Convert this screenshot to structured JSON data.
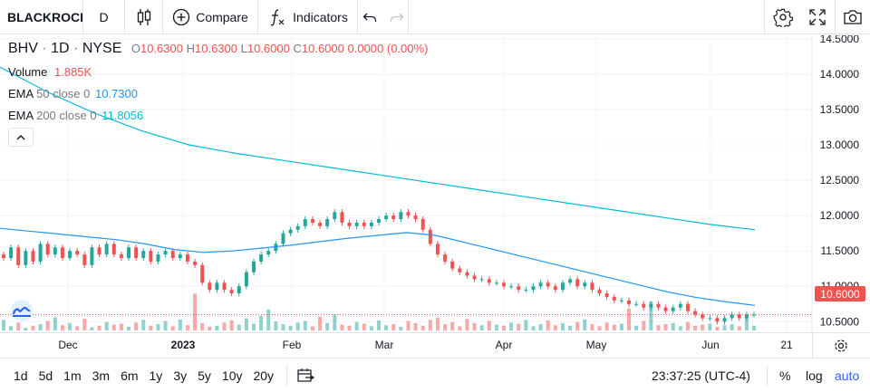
{
  "toolbar": {
    "symbol": "BLACKROCK",
    "interval": "D",
    "compare_label": "Compare",
    "indicators_label": "Indicators"
  },
  "legend": {
    "ticker": "BHV",
    "interval": "1D",
    "exchange": "NYSE",
    "o_label": "O",
    "o_value": "10.6300",
    "h_label": "H",
    "h_value": "10.6300",
    "l_label": "L",
    "l_value": "10.6000",
    "c_label": "C",
    "c_value": "10.6000",
    "change": "0.0000 (0.00%)",
    "volume_label": "Volume",
    "volume_value": "1.885K",
    "ema50_label": "EMA",
    "ema50_params": "50 close 0",
    "ema50_value": "10.7300",
    "ema200_label": "EMA",
    "ema200_params": "200 close 0",
    "ema200_value": "11.8056"
  },
  "price_axis": {
    "ticks": [
      "14.5000",
      "14.0000",
      "13.5000",
      "13.0000",
      "12.5000",
      "12.0000",
      "11.5000",
      "11.0000",
      "10.5000"
    ],
    "last_price": "10.6000"
  },
  "time_axis": {
    "labels": [
      {
        "text": "Dec",
        "bold": false
      },
      {
        "text": "2023",
        "bold": true
      },
      {
        "text": "Feb",
        "bold": false
      },
      {
        "text": "Mar",
        "bold": false
      },
      {
        "text": "Apr",
        "bold": false
      },
      {
        "text": "May",
        "bold": false
      },
      {
        "text": "Jun",
        "bold": false
      },
      {
        "text": "21",
        "bold": false
      }
    ]
  },
  "bottom_bar": {
    "ranges": [
      "1d",
      "5d",
      "1m",
      "3m",
      "6m",
      "1y",
      "3y",
      "5y",
      "10y",
      "20y"
    ],
    "clock": "23:37:25 (UTC-4)",
    "percent_label": "%",
    "log_label": "log",
    "auto_label": "auto"
  },
  "colors": {
    "up": "#26a69a",
    "down": "#ef5350",
    "ema50": "#2196f3",
    "ema200": "#00bcd4",
    "accent": "#2962ff"
  },
  "chart_data": {
    "type": "candlestick",
    "ylim": [
      10.35,
      14.55
    ],
    "series": [
      {
        "name": "BHV",
        "kind": "ohlc",
        "close": [
          11.4,
          11.55,
          11.3,
          11.5,
          11.35,
          11.6,
          11.45,
          11.55,
          11.4,
          11.5,
          11.45,
          11.3,
          11.55,
          11.45,
          11.6,
          11.45,
          11.4,
          11.55,
          11.4,
          11.5,
          11.35,
          11.45,
          11.5,
          11.4,
          11.45,
          11.35,
          11.3,
          11.05,
          10.95,
          11.05,
          10.95,
          10.9,
          11.0,
          11.2,
          11.35,
          11.45,
          11.5,
          11.6,
          11.75,
          11.8,
          11.85,
          11.95,
          11.9,
          11.85,
          11.95,
          12.05,
          11.9,
          11.85,
          11.9,
          11.85,
          11.9,
          11.95,
          12.0,
          11.95,
          12.05,
          12.0,
          11.95,
          11.8,
          11.6,
          11.45,
          11.35,
          11.25,
          11.2,
          11.15,
          11.1,
          11.1,
          11.05,
          11.05,
          11.0,
          11.0,
          10.95,
          10.95,
          11.0,
          11.05,
          11.0,
          10.95,
          11.05,
          11.1,
          11.0,
          11.05,
          10.95,
          10.9,
          10.85,
          10.8,
          10.8,
          10.75,
          10.75,
          10.7,
          10.75,
          10.7,
          10.65,
          10.7,
          10.75,
          10.65,
          10.6,
          10.55,
          10.55,
          10.5,
          10.55,
          10.6,
          10.55,
          10.6,
          10.6
        ],
        "volume": [
          20,
          8,
          15,
          5,
          9,
          12,
          18,
          25,
          10,
          14,
          8,
          22,
          6,
          9,
          16,
          11,
          13,
          7,
          15,
          20,
          9,
          12,
          18,
          8,
          21,
          10,
          70,
          14,
          7,
          9,
          15,
          19,
          11,
          23,
          13,
          28,
          40,
          17,
          12,
          9,
          15,
          18,
          8,
          26,
          14,
          30,
          11,
          9,
          16,
          13,
          8,
          19,
          10,
          12,
          7,
          18,
          14,
          9,
          20,
          24,
          12,
          16,
          8,
          22,
          14,
          10,
          18,
          11,
          9,
          15,
          13,
          20,
          8,
          12,
          19,
          10,
          14,
          9,
          16,
          21,
          12,
          8,
          15,
          11,
          13,
          42,
          9,
          18,
          55,
          10,
          12,
          14,
          8,
          16,
          9,
          11,
          13,
          7,
          10,
          12,
          8,
          25,
          9
        ],
        "volume_max": 100
      },
      {
        "name": "EMA 50 close 0",
        "kind": "line",
        "values": [
          11.82,
          11.78,
          11.74,
          11.7,
          11.66,
          11.6,
          11.52,
          11.48,
          11.5,
          11.54,
          11.58,
          11.63,
          11.68,
          11.72,
          11.76,
          11.72,
          11.62,
          11.52,
          11.42,
          11.32,
          11.22,
          11.12,
          11.02,
          10.92,
          10.84,
          10.78,
          10.73
        ]
      },
      {
        "name": "EMA 200 close 0",
        "kind": "line",
        "values": [
          14.1,
          13.75,
          13.45,
          13.2,
          13.0,
          12.88,
          12.78,
          12.68,
          12.58,
          12.48,
          12.38,
          12.28,
          12.18,
          12.08,
          11.98,
          11.88,
          11.8
        ]
      }
    ]
  }
}
